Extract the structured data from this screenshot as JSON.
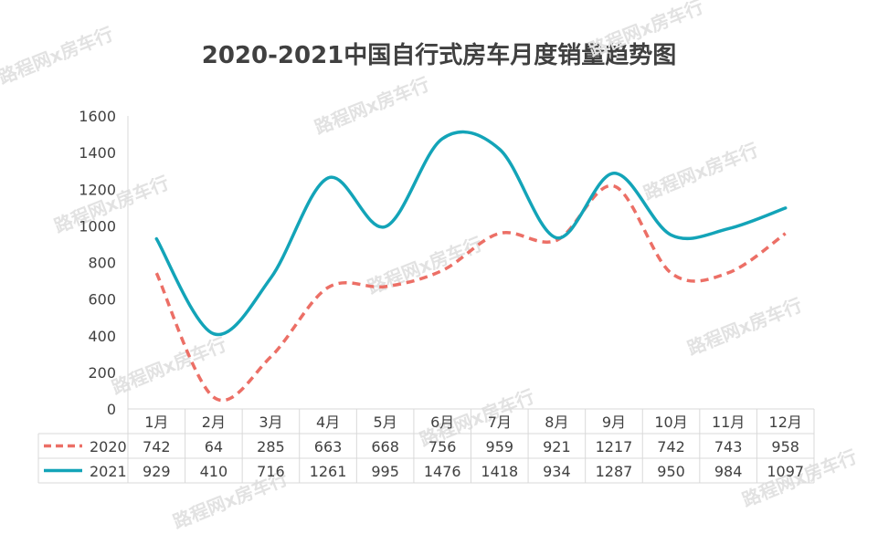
{
  "chart_data": {
    "type": "line",
    "title": "2020-2021中国自行式房车月度销量趋势图",
    "categories": [
      "1月",
      "2月",
      "3月",
      "4月",
      "5月",
      "6月",
      "7月",
      "8月",
      "9月",
      "10月",
      "11月",
      "12月"
    ],
    "series": [
      {
        "name": "2020",
        "values": [
          742,
          64,
          285,
          663,
          668,
          756,
          959,
          921,
          1217,
          742,
          743,
          958
        ],
        "color": "#ec6f66",
        "dash": "dashed"
      },
      {
        "name": "2021",
        "values": [
          929,
          410,
          716,
          1261,
          995,
          1476,
          1418,
          934,
          1287,
          950,
          984,
          1097
        ],
        "color": "#13a4b8",
        "dash": "solid"
      }
    ],
    "ylim": [
      0,
      1600
    ],
    "yticks": [
      0,
      200,
      400,
      600,
      800,
      1000,
      1200,
      1400,
      1600
    ],
    "grid": false,
    "legend": "data-table",
    "data_table": true
  },
  "watermark": {
    "text": "路程网x房车行"
  },
  "colors": {
    "grid": "#d9d9d9",
    "text": "#404040"
  }
}
